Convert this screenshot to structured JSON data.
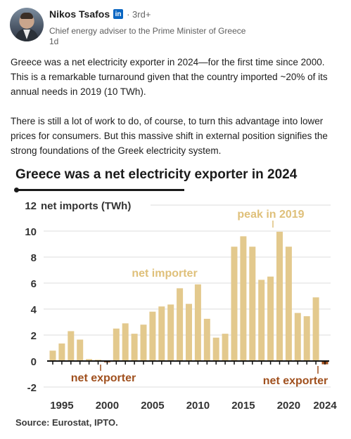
{
  "author": {
    "name": "Nikos Tsafos",
    "badge": "in",
    "degree": "· 3rd+",
    "headline": "Chief energy adviser to the Prime Minister of Greece",
    "time": "1d"
  },
  "post": {
    "paragraph1": "Greece was a net electricity exporter in 2024—for the first time since 2000. This is a remarkable turnaround given that the country imported ~20% of its annual needs in 2019 (10 TWh).",
    "paragraph2": "There is still a lot of work to do, of course, to turn this advantage into lower prices for consumers. But this massive shift in external position signifies the strong foundations of the Greek electricity system."
  },
  "chart": {
    "source": "Source: Eurostat, IPTO."
  },
  "chart_data": {
    "type": "bar",
    "title": "Greece was a net electricity exporter in 2024",
    "ylabel": "net imports (TWh)",
    "ylim": [
      -2,
      12
    ],
    "yticks": [
      12,
      10,
      8,
      6,
      4,
      2,
      0,
      -2
    ],
    "xlim": [
      1994,
      2024
    ],
    "xticks": [
      1995,
      2000,
      2005,
      2010,
      2015,
      2020,
      2024
    ],
    "grid": true,
    "colors": {
      "positive": "#e3c98d",
      "negative": "#a0501e",
      "text_pos": "#dfc07a",
      "text_neg": "#a0501e"
    },
    "annotations": [
      {
        "text": "peak in 2019",
        "kind": "positive"
      },
      {
        "text": "net importer",
        "kind": "positive"
      },
      {
        "text": "net exporter",
        "kind": "negative"
      },
      {
        "text": "net exporter",
        "kind": "negative"
      }
    ],
    "x": [
      1994,
      1995,
      1996,
      1997,
      1998,
      1999,
      2000,
      2001,
      2002,
      2003,
      2004,
      2005,
      2006,
      2007,
      2008,
      2009,
      2010,
      2011,
      2012,
      2013,
      2014,
      2015,
      2016,
      2017,
      2018,
      2019,
      2020,
      2021,
      2022,
      2023,
      2024
    ],
    "values": [
      0.8,
      1.35,
      2.3,
      1.65,
      0.15,
      0.1,
      -0.1,
      2.5,
      2.9,
      2.1,
      2.8,
      3.8,
      4.2,
      4.35,
      5.6,
      4.4,
      5.9,
      3.25,
      1.8,
      2.1,
      8.8,
      9.6,
      8.8,
      6.25,
      6.5,
      9.95,
      8.8,
      3.7,
      3.45,
      4.9,
      -0.25
    ]
  }
}
